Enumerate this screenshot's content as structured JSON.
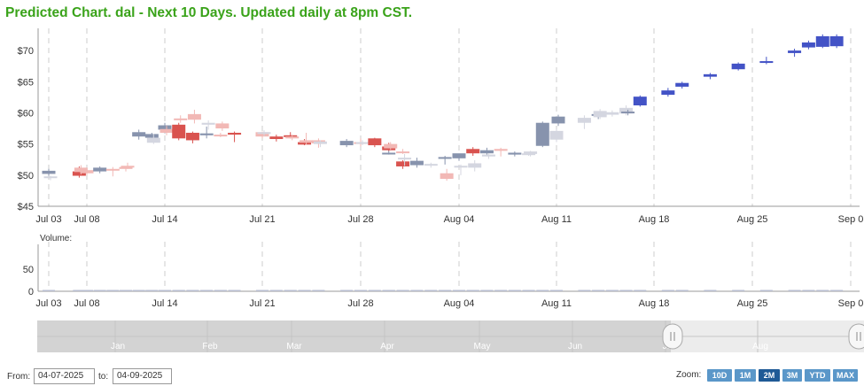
{
  "title": "Predicted Chart. dal - Next 10 Days. Updated daily at 8pm CST.",
  "chart_data": {
    "type": "candlestick",
    "ylim": [
      45,
      73
    ],
    "y_ticks": [
      "$70",
      "$65",
      "$60",
      "$55",
      "$50",
      "$45"
    ],
    "x_ticks": [
      "Jul 03",
      "Jul 08",
      "Jul 14",
      "Jul 21",
      "Jul 28",
      "Aug 04",
      "Aug 11",
      "Aug 18",
      "Aug 25",
      "Sep 0"
    ],
    "volume_label": "Volume:",
    "volume_ticks": [
      "50",
      "0"
    ],
    "navigator_months": [
      "Jan",
      "Feb",
      "Mar",
      "Apr",
      "May",
      "Jun",
      "Jul",
      "Aug"
    ],
    "colors": {
      "up": "#8793ad",
      "down": "#d9534f",
      "pred_up": "#d4d6e0",
      "pred_down": "#f2b8b5",
      "future": "#4353c6",
      "grid": "#cccccc"
    },
    "candles": [
      {
        "date": "Jul 03",
        "open": 50.2,
        "high": 51.0,
        "low": 49.9,
        "close": 50.7,
        "kind": "up"
      },
      {
        "date": "Jul 03 pred",
        "open": 49.6,
        "high": 49.9,
        "low": 49.2,
        "close": 49.8,
        "kind": "pred_up"
      },
      {
        "date": "Jul 07",
        "open": 50.6,
        "high": 51.4,
        "low": 49.6,
        "close": 49.9,
        "kind": "down"
      },
      {
        "date": "Jul 07 pred",
        "open": 51.2,
        "high": 51.6,
        "low": 50.1,
        "close": 50.5,
        "kind": "pred_down"
      },
      {
        "date": "Jul 08",
        "open": 50.3,
        "high": 51.0,
        "low": 50.0,
        "close": 50.8,
        "kind": "pred_down"
      },
      {
        "date": "Jul 09",
        "open": 50.6,
        "high": 51.4,
        "low": 50.3,
        "close": 51.2,
        "kind": "up"
      },
      {
        "date": "Jul 10",
        "open": 50.8,
        "high": 51.3,
        "low": 49.8,
        "close": 51.0,
        "kind": "pred_down"
      },
      {
        "date": "Jul 11",
        "open": 51.0,
        "high": 51.4,
        "low": 50.6,
        "close": 51.3,
        "kind": "pred_down"
      },
      {
        "date": "Jul 11 pred",
        "open": 51.3,
        "high": 52.0,
        "low": 51.0,
        "close": 51.5,
        "kind": "pred_down"
      },
      {
        "date": "Jul 12",
        "open": 56.2,
        "high": 57.3,
        "low": 55.7,
        "close": 56.9,
        "kind": "up"
      },
      {
        "date": "Jul 13",
        "open": 56.0,
        "high": 56.8,
        "low": 55.7,
        "close": 56.6,
        "kind": "up"
      },
      {
        "date": "Jul 13 pred",
        "open": 55.2,
        "high": 56.6,
        "low": 55.0,
        "close": 56.0,
        "kind": "pred_up"
      },
      {
        "date": "Jul 14",
        "open": 57.3,
        "high": 58.4,
        "low": 56.7,
        "close": 58.0,
        "kind": "up"
      },
      {
        "date": "Jul 14 pred",
        "open": 57.4,
        "high": 57.9,
        "low": 56.4,
        "close": 56.8,
        "kind": "pred_down"
      },
      {
        "date": "Jul 15",
        "open": 58.1,
        "high": 58.4,
        "low": 55.6,
        "close": 55.9,
        "kind": "down"
      },
      {
        "date": "Jul 15 pred",
        "open": 59.0,
        "high": 59.6,
        "low": 58.4,
        "close": 59.1,
        "kind": "pred_down"
      },
      {
        "date": "Jul 16",
        "open": 56.8,
        "high": 57.0,
        "low": 55.1,
        "close": 55.6,
        "kind": "down"
      },
      {
        "date": "Jul 16 pred",
        "open": 59.8,
        "high": 60.5,
        "low": 58.3,
        "close": 58.9,
        "kind": "pred_down"
      },
      {
        "date": "Jul 17",
        "open": 56.4,
        "high": 57.8,
        "low": 55.9,
        "close": 56.7,
        "kind": "up"
      },
      {
        "date": "Jul 17 pred",
        "open": 58.1,
        "high": 58.8,
        "low": 57.3,
        "close": 58.4,
        "kind": "pred_up"
      },
      {
        "date": "Jul 18",
        "open": 56.3,
        "high": 56.8,
        "low": 56.1,
        "close": 56.5,
        "kind": "pred_down"
      },
      {
        "date": "Jul 18 pred",
        "open": 58.3,
        "high": 58.6,
        "low": 57.1,
        "close": 57.5,
        "kind": "pred_down"
      },
      {
        "date": "Jul 19",
        "open": 56.8,
        "high": 57.0,
        "low": 55.3,
        "close": 56.5,
        "kind": "down"
      },
      {
        "date": "Jul 21",
        "open": 56.9,
        "high": 57.0,
        "low": 55.9,
        "close": 56.2,
        "kind": "pred_down"
      },
      {
        "date": "Jul 21 pred",
        "open": 56.8,
        "high": 57.2,
        "low": 56.3,
        "close": 56.9,
        "kind": "pred_up"
      },
      {
        "date": "Jul 22",
        "open": 56.2,
        "high": 56.5,
        "low": 55.4,
        "close": 55.8,
        "kind": "down"
      },
      {
        "date": "Jul 23",
        "open": 56.4,
        "high": 56.9,
        "low": 55.9,
        "close": 56.3,
        "kind": "down"
      },
      {
        "date": "Jul 23 pred",
        "open": 56.2,
        "high": 56.5,
        "low": 55.6,
        "close": 55.9,
        "kind": "pred_down"
      },
      {
        "date": "Jul 24",
        "open": 55.3,
        "high": 55.8,
        "low": 54.8,
        "close": 54.9,
        "kind": "down"
      },
      {
        "date": "Jul 24 pred",
        "open": 55.6,
        "high": 56.8,
        "low": 54.9,
        "close": 55.2,
        "kind": "pred_down"
      },
      {
        "date": "Jul 25",
        "open": 55.1,
        "high": 55.9,
        "low": 54.4,
        "close": 55.6,
        "kind": "pred_down"
      },
      {
        "date": "Jul 25 pred",
        "open": 55.0,
        "high": 55.6,
        "low": 54.5,
        "close": 55.4,
        "kind": "pred_up"
      },
      {
        "date": "Jul 27",
        "open": 54.8,
        "high": 55.8,
        "low": 54.5,
        "close": 55.5,
        "kind": "up"
      },
      {
        "date": "Jul 28",
        "open": 55.3,
        "high": 55.9,
        "low": 54.6,
        "close": 55.0,
        "kind": "pred_down"
      },
      {
        "date": "Jul 28 pred",
        "open": 55.1,
        "high": 55.6,
        "low": 54.8,
        "close": 55.3,
        "kind": "pred_up"
      },
      {
        "date": "Jul 29",
        "open": 55.9,
        "high": 56.0,
        "low": 54.5,
        "close": 54.8,
        "kind": "down"
      },
      {
        "date": "Jul 30",
        "open": 54.6,
        "high": 55.2,
        "low": 53.8,
        "close": 54.0,
        "kind": "down"
      },
      {
        "date": "Jul 30 pred",
        "open": 55.0,
        "high": 55.3,
        "low": 54.1,
        "close": 54.3,
        "kind": "pred_down"
      },
      {
        "date": "Jul 31",
        "open": 53.8,
        "high": 54.2,
        "low": 53.4,
        "close": 53.6,
        "kind": "pred_down"
      },
      {
        "date": "Aug 01",
        "open": 53.6,
        "high": 53.9,
        "low": 53.3,
        "close": 53.5,
        "kind": "up"
      },
      {
        "date": "Aug 02",
        "open": 52.2,
        "high": 52.4,
        "low": 51.0,
        "close": 51.4,
        "kind": "down"
      },
      {
        "date": "Aug 02 pred",
        "open": 52.8,
        "high": 53.4,
        "low": 51.5,
        "close": 52.6,
        "kind": "pred_up"
      },
      {
        "date": "Aug 03",
        "open": 51.6,
        "high": 52.8,
        "low": 51.2,
        "close": 52.3,
        "kind": "up"
      },
      {
        "date": "Aug 04",
        "open": 51.8,
        "high": 52.0,
        "low": 51.2,
        "close": 51.6,
        "kind": "pred_up"
      },
      {
        "date": "Aug 05",
        "open": 52.7,
        "high": 53.1,
        "low": 51.7,
        "close": 52.9,
        "kind": "up"
      },
      {
        "date": "Aug 05 pred",
        "open": 50.3,
        "high": 51.0,
        "low": 49.1,
        "close": 49.4,
        "kind": "pred_down"
      },
      {
        "date": "Aug 06",
        "open": 52.7,
        "high": 53.4,
        "low": 52.3,
        "close": 53.5,
        "kind": "up"
      },
      {
        "date": "Aug 06 pred",
        "open": 51.3,
        "high": 51.7,
        "low": 50.0,
        "close": 51.5,
        "kind": "pred_up"
      },
      {
        "date": "Aug 07",
        "open": 54.2,
        "high": 54.5,
        "low": 53.1,
        "close": 53.5,
        "kind": "down"
      },
      {
        "date": "Aug 07 pred",
        "open": 51.2,
        "high": 52.4,
        "low": 50.6,
        "close": 51.9,
        "kind": "pred_up"
      },
      {
        "date": "Aug 08",
        "open": 53.5,
        "high": 54.4,
        "low": 53.1,
        "close": 54.0,
        "kind": "up"
      },
      {
        "date": "Aug 08 pred",
        "open": 53.0,
        "high": 53.5,
        "low": 52.6,
        "close": 53.3,
        "kind": "pred_up"
      },
      {
        "date": "Aug 09",
        "open": 54.2,
        "high": 54.4,
        "low": 53.0,
        "close": 53.9,
        "kind": "pred_down"
      },
      {
        "date": "Aug 10",
        "open": 53.3,
        "high": 53.8,
        "low": 53.0,
        "close": 53.6,
        "kind": "up"
      },
      {
        "date": "Aug 11",
        "open": 53.4,
        "high": 53.7,
        "low": 53.1,
        "close": 53.5,
        "kind": "pred_up"
      },
      {
        "date": "Aug 11 pred",
        "open": 53.4,
        "high": 53.9,
        "low": 53.0,
        "close": 53.8,
        "kind": "pred_up"
      },
      {
        "date": "Aug 12",
        "open": 54.7,
        "high": 58.6,
        "low": 54.5,
        "close": 58.4,
        "kind": "up"
      },
      {
        "date": "Aug 13",
        "open": 55.7,
        "high": 57.4,
        "low": 55.3,
        "close": 57.1,
        "kind": "pred_up"
      },
      {
        "date": "Aug 13 pred",
        "open": 58.3,
        "high": 59.7,
        "low": 57.9,
        "close": 59.4,
        "kind": "up"
      },
      {
        "date": "Aug 15",
        "open": 58.4,
        "high": 59.6,
        "low": 57.4,
        "close": 59.2,
        "kind": "pred_up"
      },
      {
        "date": "Aug 16",
        "open": 59.6,
        "high": 60.2,
        "low": 59.0,
        "close": 59.8,
        "kind": "up"
      },
      {
        "date": "Aug 16 pred",
        "open": 59.3,
        "high": 60.6,
        "low": 59.0,
        "close": 60.3,
        "kind": "pred_up"
      },
      {
        "date": "Aug 17",
        "open": 59.7,
        "high": 60.4,
        "low": 59.4,
        "close": 60.1,
        "kind": "pred_up"
      },
      {
        "date": "Aug 18",
        "open": 59.9,
        "high": 61.2,
        "low": 59.6,
        "close": 60.8,
        "kind": "pred_up"
      },
      {
        "date": "Aug 18 pred",
        "open": 60.0,
        "high": 60.5,
        "low": 59.6,
        "close": 60.2,
        "kind": "up"
      },
      {
        "date": "Aug 19",
        "open": 61.2,
        "high": 62.8,
        "low": 61.0,
        "close": 62.6,
        "kind": "future"
      },
      {
        "date": "Aug 21",
        "open": 62.9,
        "high": 64.0,
        "low": 62.6,
        "close": 63.6,
        "kind": "future"
      },
      {
        "date": "Aug 22",
        "open": 64.2,
        "high": 65.0,
        "low": 63.9,
        "close": 64.8,
        "kind": "future"
      },
      {
        "date": "Aug 24",
        "open": 65.8,
        "high": 66.4,
        "low": 65.4,
        "close": 66.2,
        "kind": "future"
      },
      {
        "date": "Aug 26",
        "open": 67.0,
        "high": 68.1,
        "low": 66.8,
        "close": 67.9,
        "kind": "future"
      },
      {
        "date": "Aug 28",
        "open": 68.1,
        "high": 69.0,
        "low": 67.8,
        "close": 68.3,
        "kind": "future"
      },
      {
        "date": "Aug 30",
        "open": 69.6,
        "high": 70.3,
        "low": 69.0,
        "close": 70.0,
        "kind": "future"
      },
      {
        "date": "Aug 31",
        "open": 70.5,
        "high": 71.6,
        "low": 70.2,
        "close": 71.3,
        "kind": "future"
      },
      {
        "date": "Sep 01",
        "open": 70.6,
        "high": 72.6,
        "low": 70.4,
        "close": 72.3,
        "kind": "future"
      },
      {
        "date": "Sep 02",
        "open": 70.7,
        "high": 72.6,
        "low": 70.4,
        "close": 72.3,
        "kind": "future"
      }
    ]
  },
  "footer": {
    "from_label": "From:",
    "from_value": "04-07-2025",
    "to_label": "to:",
    "to_value": "04-09-2025",
    "zoom_label": "Zoom:",
    "zoom_buttons": [
      "10D",
      "1M",
      "2M",
      "3M",
      "YTD",
      "MAX"
    ],
    "zoom_active": "2M"
  }
}
